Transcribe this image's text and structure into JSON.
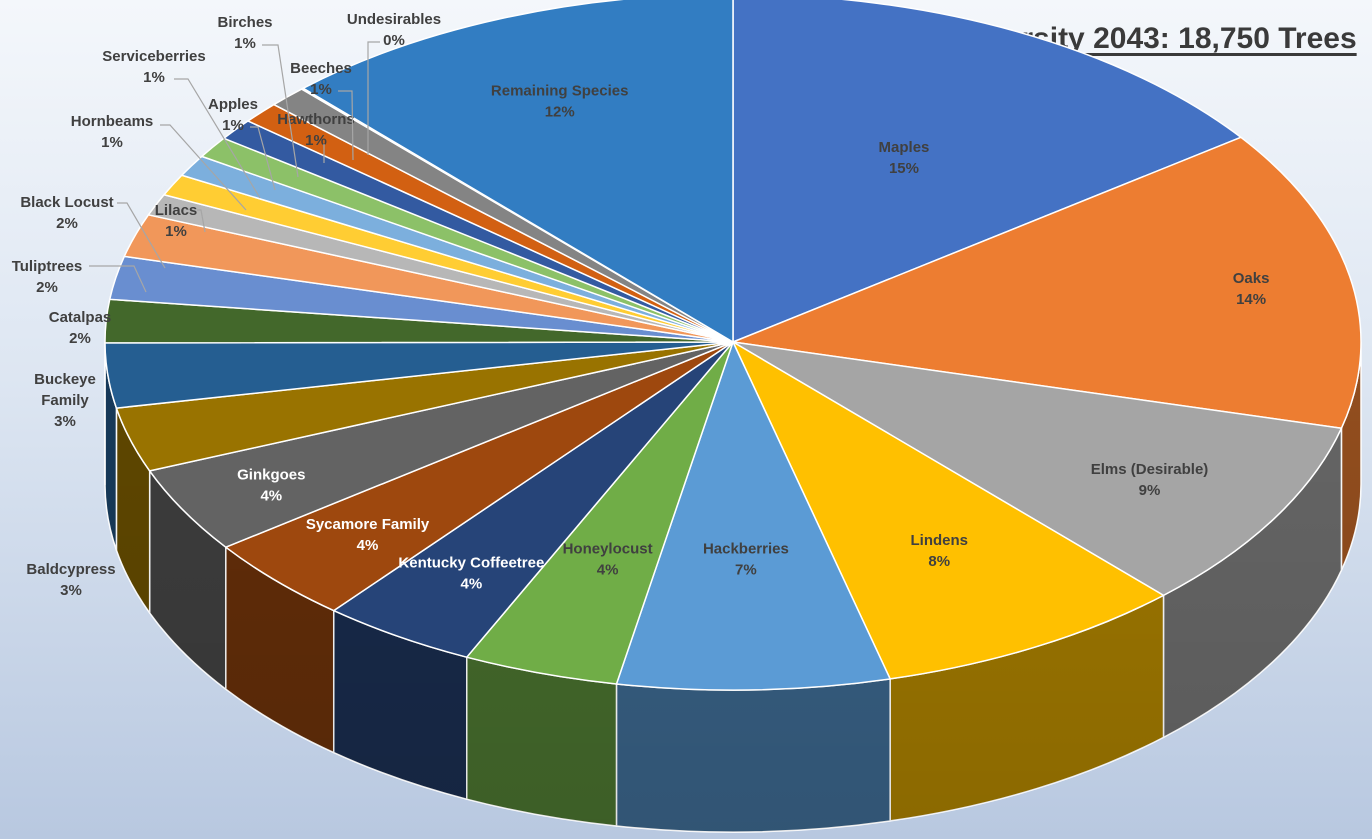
{
  "chart_data": {
    "type": "pie",
    "style": "3d",
    "title": "Diversity 2043: 18,750 Trees",
    "legend": "none",
    "categories": [
      "Maples",
      "Oaks",
      "Elms (Desirable)",
      "Lindens",
      "Hackberries",
      "Honeylocust",
      "Kentucky Coffeetree",
      "Sycamore Family",
      "Ginkgoes",
      "Baldcypress",
      "Buckeye Family",
      "Catalpas",
      "Tuliptrees",
      "Black Locust",
      "Lilacs",
      "Hornbeams",
      "Serviceberries",
      "Apples",
      "Birches",
      "Hawthorns",
      "Beeches",
      "Undesirables",
      "Remaining Species"
    ],
    "values": [
      15,
      14,
      9,
      8,
      7,
      4,
      4,
      4,
      4,
      3,
      3,
      2,
      2,
      2,
      1,
      1,
      1,
      1,
      1,
      1,
      1,
      0,
      12
    ],
    "data_labels": [
      "15%",
      "14%",
      "9%",
      "8%",
      "7%",
      "4%",
      "4%",
      "4%",
      "4%",
      "3%",
      "3%",
      "2%",
      "2%",
      "2%",
      "1%",
      "1%",
      "1%",
      "1%",
      "1%",
      "1%",
      "1%",
      "0%",
      "12%"
    ],
    "colors": [
      "#4472C4",
      "#ED7D31",
      "#A5A5A5",
      "#FFC000",
      "#5B9BD5",
      "#70AD47",
      "#264478",
      "#9E480E",
      "#636363",
      "#997300",
      "#255E91",
      "#43682B",
      "#698ED0",
      "#F1975A",
      "#B7B7B7",
      "#FFCD33",
      "#7CAFDD",
      "#8CC168",
      "#335AA1",
      "#D26012",
      "#848484",
      "#CC9A00",
      "#327DC2"
    ]
  }
}
